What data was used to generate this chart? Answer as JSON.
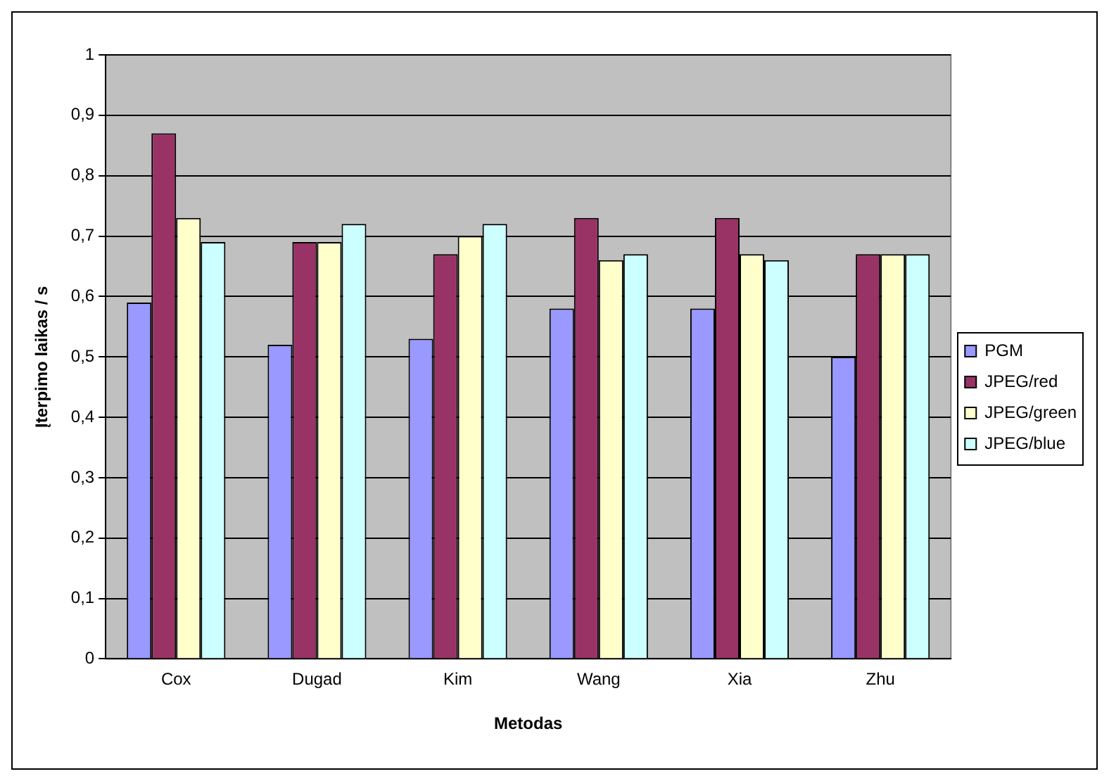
{
  "chart_data": {
    "type": "bar",
    "xlabel": "Metodas",
    "ylabel": "Įterpimo laikas / s",
    "categories": [
      "Cox",
      "Dugad",
      "Kim",
      "Wang",
      "Xia",
      "Zhu"
    ],
    "series": [
      {
        "name": "PGM",
        "color": "#9999ff",
        "values": [
          0.59,
          0.52,
          0.53,
          0.58,
          0.58,
          0.5
        ]
      },
      {
        "name": "JPEG/red",
        "color": "#993366",
        "values": [
          0.87,
          0.69,
          0.67,
          0.73,
          0.73,
          0.67
        ]
      },
      {
        "name": "JPEG/green",
        "color": "#ffffcc",
        "values": [
          0.73,
          0.69,
          0.7,
          0.66,
          0.67,
          0.67
        ]
      },
      {
        "name": "JPEG/blue",
        "color": "#ccffff",
        "values": [
          0.69,
          0.72,
          0.72,
          0.67,
          0.66,
          0.67
        ]
      }
    ],
    "ylim": [
      0,
      1
    ],
    "yticks": [
      0,
      {
        "value": 0.1,
        "label": "0,1"
      },
      {
        "value": 0.2,
        "label": "0,2"
      },
      {
        "value": 0.3,
        "label": "0,3"
      },
      {
        "value": 0.4,
        "label": "0,4"
      },
      {
        "value": 0.5,
        "label": "0,5"
      },
      {
        "value": 0.6,
        "label": "0,6"
      },
      {
        "value": 0.7,
        "label": "0,7"
      },
      {
        "value": 0.8,
        "label": "0,8"
      },
      {
        "value": 0.9,
        "label": "0,9"
      },
      1
    ],
    "grid": "y",
    "legend": "right"
  }
}
